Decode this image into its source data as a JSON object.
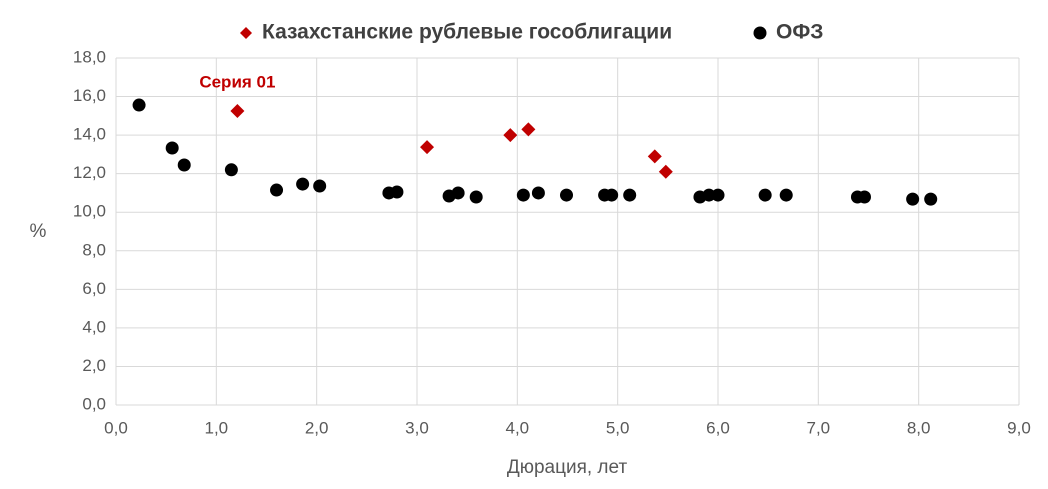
{
  "chart_data": {
    "type": "scatter",
    "annotation": "Серия 01",
    "x_label": "Дюрация, лет",
    "y_label": "%",
    "series": [
      {
        "name": "Казахстанские рублевые гособлигации",
        "color": "#c00000",
        "marker": "diamond",
        "x": [
          1.21,
          3.1,
          3.93,
          4.11,
          5.37,
          5.48
        ],
        "values": [
          15.25,
          13.38,
          14.0,
          14.3,
          12.9,
          12.1
        ]
      },
      {
        "name": "ОФЗ",
        "color": "#000000",
        "marker": "circle",
        "x": [
          0.23,
          0.56,
          0.68,
          1.15,
          1.6,
          1.86,
          2.03,
          2.72,
          2.8,
          3.32,
          3.41,
          3.59,
          4.06,
          4.21,
          4.49,
          4.87,
          4.94,
          5.12,
          5.82,
          5.91,
          6.0,
          6.47,
          6.68,
          7.39,
          7.46,
          7.94,
          8.12
        ],
        "values": [
          15.56,
          13.33,
          12.45,
          12.2,
          11.15,
          11.46,
          11.36,
          11.0,
          11.05,
          10.84,
          11.0,
          10.79,
          10.89,
          11.0,
          10.89,
          10.89,
          10.89,
          10.89,
          10.79,
          10.89,
          10.89,
          10.89,
          10.89,
          10.79,
          10.79,
          10.68,
          10.68
        ]
      }
    ],
    "xlim": [
      0,
      9
    ],
    "xticks": [
      {
        "value": 0,
        "label": "0,0"
      },
      {
        "value": 1,
        "label": "1,0"
      },
      {
        "value": 2,
        "label": "2,0"
      },
      {
        "value": 3,
        "label": "3,0"
      },
      {
        "value": 4,
        "label": "4,0"
      },
      {
        "value": 5,
        "label": "5,0"
      },
      {
        "value": 6,
        "label": "6,0"
      },
      {
        "value": 7,
        "label": "7,0"
      },
      {
        "value": 8,
        "label": "8,0"
      },
      {
        "value": 9,
        "label": "9,0"
      }
    ],
    "ylim": [
      0,
      18
    ],
    "yticks": [
      {
        "value": 0,
        "label": "0,0"
      },
      {
        "value": 2,
        "label": "2,0"
      },
      {
        "value": 4,
        "label": "4,0"
      },
      {
        "value": 6,
        "label": "6,0"
      },
      {
        "value": 8,
        "label": "8,0"
      },
      {
        "value": 10,
        "label": "10,0"
      },
      {
        "value": 12,
        "label": "12,0"
      },
      {
        "value": 14,
        "label": "14,0"
      },
      {
        "value": 16,
        "label": "16,0"
      },
      {
        "value": 18,
        "label": "18,0"
      }
    ],
    "grid": true,
    "legend": "top"
  }
}
